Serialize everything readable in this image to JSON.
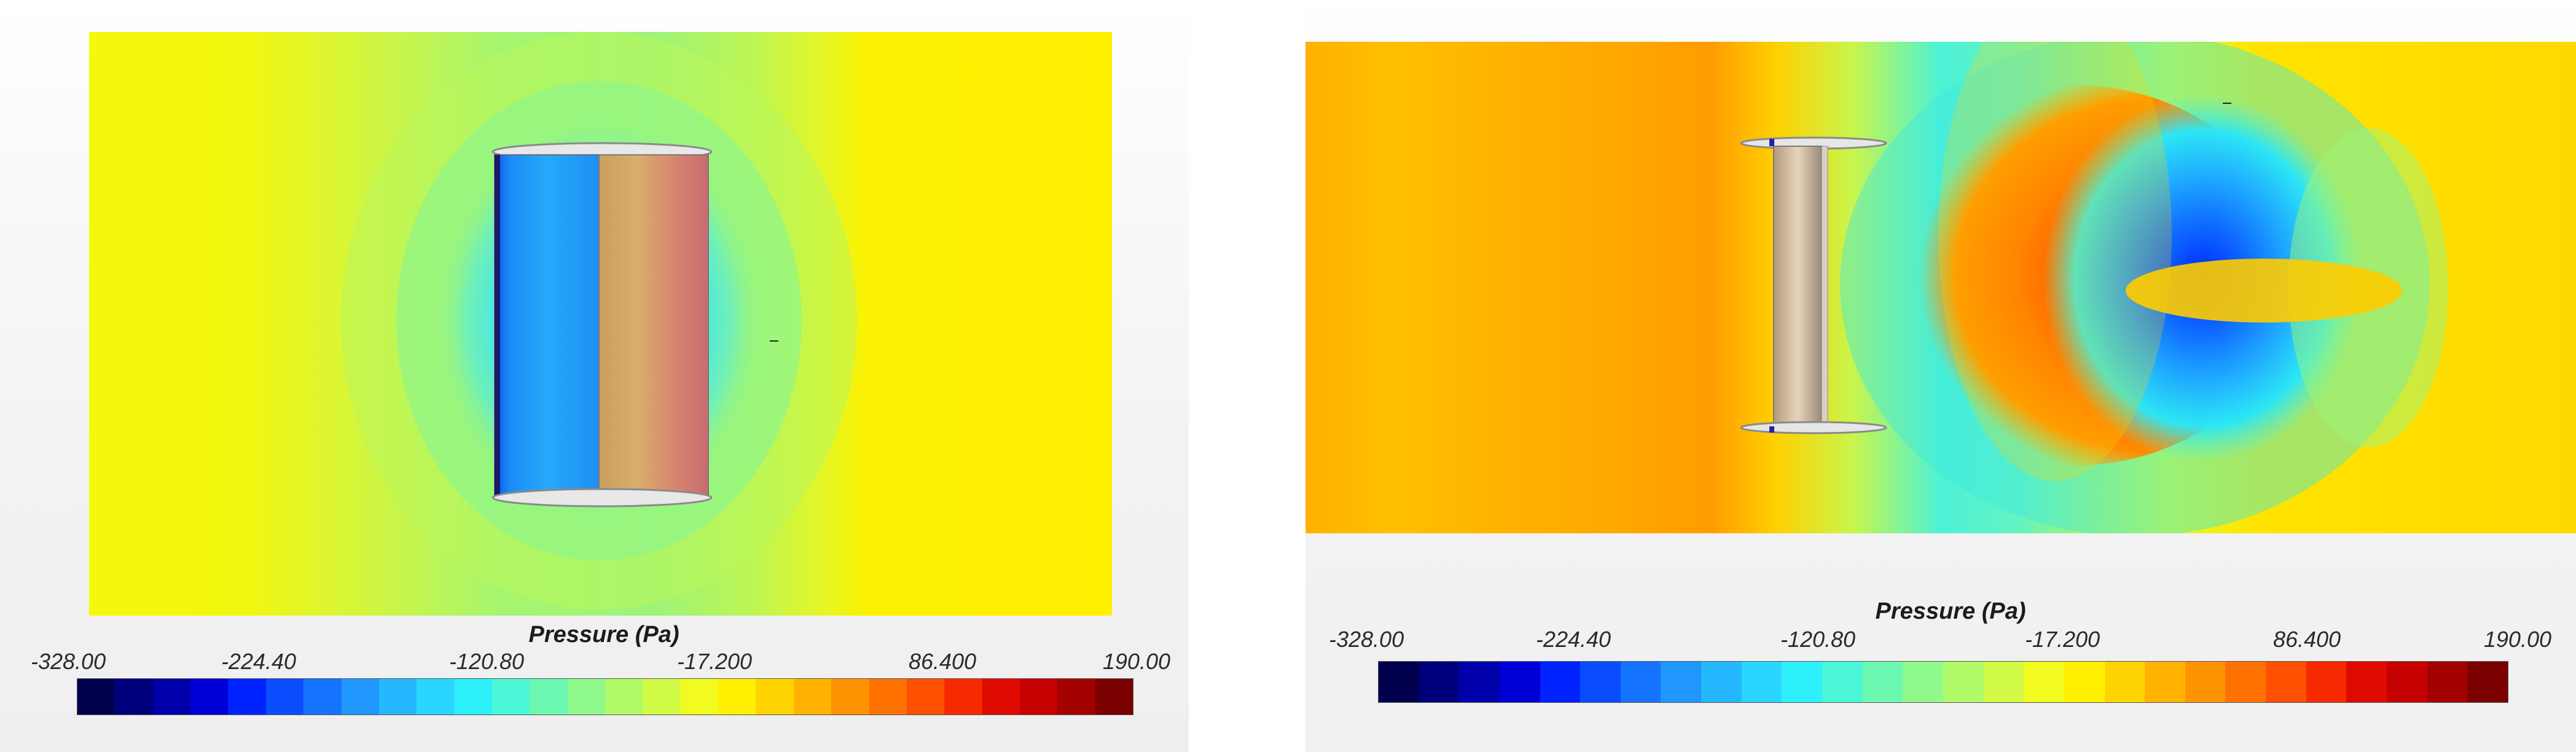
{
  "colors": {
    "scale": [
      "#00004f",
      "#00007c",
      "#0000aa",
      "#0000d6",
      "#0022ff",
      "#0a4dff",
      "#1574ff",
      "#1f97ff",
      "#26b8ff",
      "#2ad6ff",
      "#2df0fb",
      "#4af7d6",
      "#6cf8b0",
      "#8ff98c",
      "#b1fa67",
      "#d2fb45",
      "#f2fb1f",
      "#fff100",
      "#ffd300",
      "#ffb300",
      "#ff9300",
      "#ff7200",
      "#ff4f00",
      "#f52a00",
      "#df0a00",
      "#c50000",
      "#a30000",
      "#7a0000"
    ]
  },
  "panels": [
    {
      "name": "left",
      "legend": {
        "title": "Pressure (Pa)",
        "ticks": [
          "-328.00",
          "-224.40",
          "-120.80",
          "-17.200",
          "86.400",
          "190.00"
        ]
      }
    },
    {
      "name": "right",
      "legend": {
        "title": "Pressure (Pa)",
        "ticks": [
          "-328.00",
          "-224.40",
          "-120.80",
          "-17.200",
          "86.400",
          "190.00"
        ]
      }
    }
  ]
}
